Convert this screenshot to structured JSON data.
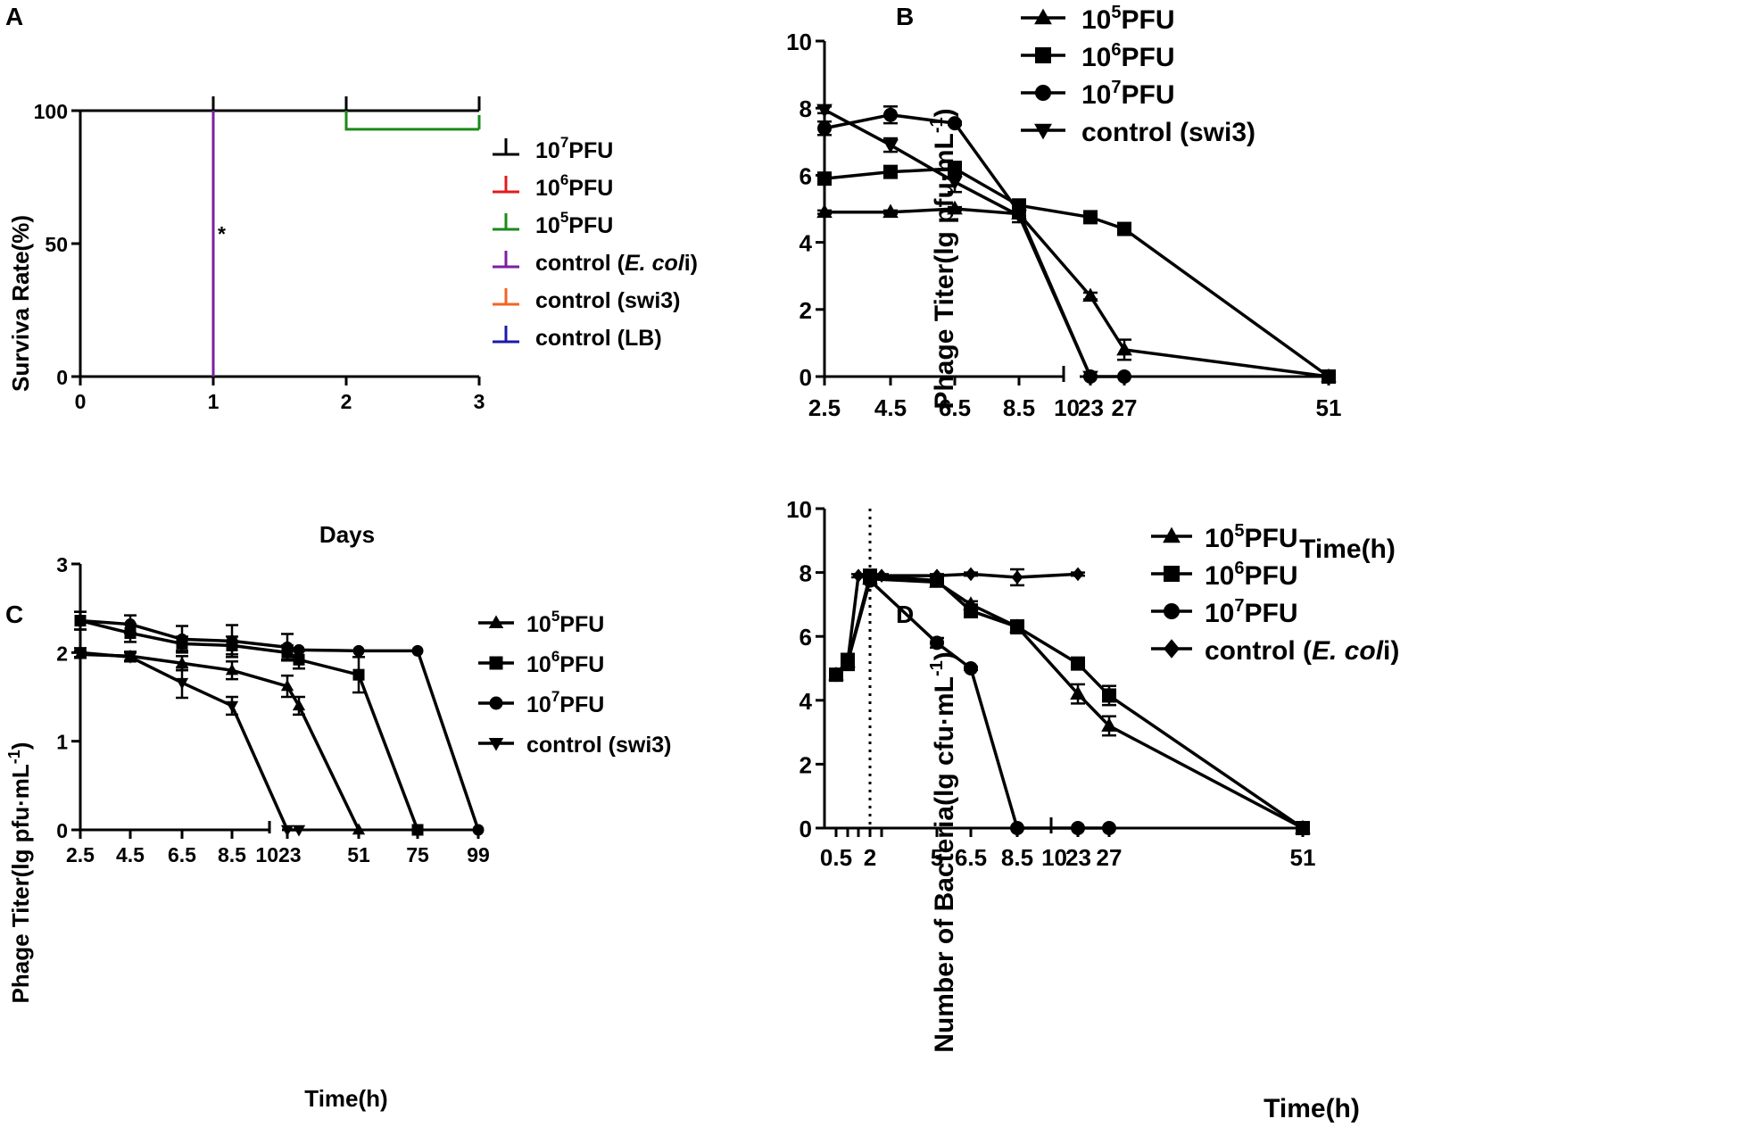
{
  "chart_data": [
    {
      "panel": "A",
      "type": "line",
      "subtype": "survival",
      "xlabel": "Days",
      "ylabel": "Surviva Rate(%)",
      "xlim": [
        0,
        3
      ],
      "ylim": [
        0,
        100
      ],
      "xticks": [
        "0",
        "1",
        "2",
        "3"
      ],
      "yticks": [
        "0",
        "50",
        "100"
      ],
      "annotation": "*",
      "legend_position": "right",
      "series": [
        {
          "name": "10^7PFU",
          "base": "10",
          "sup": "7",
          "rest": "PFU",
          "color": "#000000",
          "points": [
            [
              0,
              100
            ],
            [
              3,
              100
            ]
          ],
          "censor": [
            1,
            2,
            3
          ]
        },
        {
          "name": "10^6PFU",
          "base": "10",
          "sup": "6",
          "rest": "PFU",
          "color": "#e31a1c",
          "points": [],
          "censor": []
        },
        {
          "name": "10^5PFU",
          "base": "10",
          "sup": "5",
          "rest": "PFU",
          "color": "#1a8a1a",
          "points": [
            [
              2,
              100
            ],
            [
              2,
              93
            ],
            [
              3,
              93
            ]
          ],
          "censor": [
            3
          ]
        },
        {
          "name": "control (E. coli)",
          "pre": "control (",
          "italic": "E. col",
          "post": "i)",
          "color": "#7b1fa2",
          "points": [
            [
              1,
              100
            ],
            [
              1,
              0
            ]
          ],
          "censor": []
        },
        {
          "name": "control (swi3)",
          "label": "control (swi3)",
          "color": "#f26522",
          "points": [],
          "censor": []
        },
        {
          "name": "control (LB)",
          "label": "control (LB)",
          "color": "#1a1aa8",
          "points": [],
          "censor": []
        }
      ]
    },
    {
      "panel": "B",
      "type": "line",
      "xlabel": "Time(h)",
      "ylabel": "Phage Titer(lg pfu·mL",
      "ylabel_sup": "-1",
      "ylabel_end": ")",
      "ylim": [
        0,
        10
      ],
      "yticks": [
        "0",
        "2",
        "4",
        "6",
        "8",
        "10"
      ],
      "categories": [
        "2.5",
        "4.5",
        "6.5",
        "8.5",
        "10",
        "23",
        "27",
        "51"
      ],
      "legend_position": "top-right",
      "series": [
        {
          "name": "10^5PFU",
          "base": "10",
          "sup": "5",
          "rest": "PFU",
          "marker": "triangle-up",
          "x": [
            "2.5",
            "4.5",
            "6.5",
            "8.5",
            "23",
            "27",
            "51"
          ],
          "values": [
            4.9,
            4.9,
            5.0,
            4.85,
            2.4,
            0.8,
            0.0
          ],
          "err": [
            0.05,
            0.05,
            0.05,
            0.1,
            0.1,
            0.3,
            0.05
          ]
        },
        {
          "name": "10^6PFU",
          "base": "10",
          "sup": "6",
          "rest": "PFU",
          "marker": "square",
          "x": [
            "2.5",
            "4.5",
            "6.5",
            "8.5",
            "23",
            "27",
            "51"
          ],
          "values": [
            5.9,
            6.1,
            6.2,
            5.1,
            4.75,
            4.4,
            0.0
          ],
          "err": [
            0.1,
            0.1,
            0.2,
            0.1,
            0.1,
            0.1,
            0.05
          ]
        },
        {
          "name": "10^7PFU",
          "base": "10",
          "sup": "7",
          "rest": "PFU",
          "marker": "circle",
          "x": [
            "2.5",
            "4.5",
            "6.5",
            "8.5",
            "23",
            "27"
          ],
          "values": [
            7.4,
            7.8,
            7.55,
            4.9,
            0.0,
            0.0
          ],
          "err": [
            0.2,
            0.25,
            0.05,
            0.1,
            0.0,
            0.0
          ]
        },
        {
          "name": "control (swi3)",
          "label": "control (swi3)",
          "marker": "triangle-down",
          "x": [
            "2.5",
            "4.5",
            "6.5",
            "8.5",
            "23"
          ],
          "values": [
            7.95,
            6.9,
            5.8,
            4.8,
            0.0
          ],
          "err": [
            0.1,
            0.2,
            0.3,
            0.2,
            0.0
          ]
        }
      ]
    },
    {
      "panel": "C",
      "type": "line",
      "xlabel": "Time(h)",
      "ylabel": "Phage Titer(lg pfu·mL",
      "ylabel_sup": "-1",
      "ylabel_end": ")",
      "ylim": [
        0,
        3
      ],
      "yticks": [
        "0",
        "1",
        "2",
        "3"
      ],
      "categories": [
        "2.5",
        "4.5",
        "6.5",
        "8.5",
        "10",
        "23",
        "51",
        "75",
        "99"
      ],
      "legend_position": "right",
      "series": [
        {
          "name": "10^5PFU",
          "base": "10",
          "sup": "5",
          "rest": "PFU",
          "marker": "triangle-up",
          "x": [
            "2.5",
            "4.5",
            "6.5",
            "8.5",
            "23",
            "25",
            "51"
          ],
          "values": [
            1.98,
            1.96,
            1.88,
            1.8,
            1.62,
            1.4,
            0.0
          ],
          "err": [
            0.04,
            0.05,
            0.08,
            0.1,
            0.12,
            0.1,
            0.0
          ]
        },
        {
          "name": "10^6PFU",
          "base": "10",
          "sup": "6",
          "rest": "PFU",
          "marker": "square",
          "x": [
            "2.5",
            "4.5",
            "6.5",
            "8.5",
            "23",
            "25",
            "51",
            "75"
          ],
          "values": [
            2.36,
            2.22,
            2.1,
            2.08,
            2.0,
            1.92,
            1.75,
            0.0
          ],
          "err": [
            0.1,
            0.1,
            0.08,
            0.1,
            0.08,
            0.1,
            0.2,
            0.0
          ]
        },
        {
          "name": "10^7PFU",
          "base": "10",
          "sup": "7",
          "rest": "PFU",
          "marker": "circle",
          "x": [
            "2.5",
            "4.5",
            "6.5",
            "8.5",
            "23",
            "25",
            "51",
            "75",
            "99"
          ],
          "values": [
            2.36,
            2.32,
            2.15,
            2.13,
            2.06,
            2.03,
            2.02,
            2.02,
            0.0
          ],
          "err": [
            0.1,
            0.1,
            0.15,
            0.18,
            0.15,
            0.0,
            0.0,
            0.0,
            0.0
          ]
        },
        {
          "name": "control (swi3)",
          "label": "control (swi3)",
          "marker": "triangle-down",
          "x": [
            "2.5",
            "4.5",
            "6.5",
            "8.5",
            "23",
            "25"
          ],
          "values": [
            2.0,
            1.95,
            1.66,
            1.4,
            0.0,
            0.0
          ],
          "err": [
            0.05,
            0.05,
            0.17,
            0.1,
            0.0,
            0.0
          ]
        }
      ]
    },
    {
      "panel": "D",
      "type": "line",
      "xlabel": "Time(h)",
      "ylabel": "Number of Bacteria(lg cfu·mL",
      "ylabel_sup": "-1",
      "ylabel_end": ")",
      "ylim": [
        0,
        10
      ],
      "yticks": [
        "0",
        "2",
        "4",
        "6",
        "8",
        "10"
      ],
      "xticks": [
        "0.5",
        "2",
        "5",
        "6.5",
        "8.5",
        "10",
        "23",
        "27",
        "51"
      ],
      "reference_line_x": 2,
      "legend_position": "right",
      "series": [
        {
          "name": "10^5PFU",
          "base": "10",
          "sup": "5",
          "rest": "PFU",
          "marker": "triangle-up",
          "x": [
            0.5,
            1,
            2,
            5,
            6.5,
            8.5,
            23,
            27,
            51
          ],
          "values": [
            4.8,
            5.2,
            7.8,
            7.7,
            7.0,
            6.3,
            4.2,
            3.2,
            0.0
          ],
          "err": [
            0.1,
            0.25,
            0.1,
            0.1,
            0.1,
            0.2,
            0.3,
            0.3,
            0.05
          ]
        },
        {
          "name": "10^6PFU",
          "base": "10",
          "sup": "6",
          "rest": "PFU",
          "marker": "square",
          "x": [
            0.5,
            1,
            2,
            5,
            6.5,
            8.5,
            23,
            27,
            51
          ],
          "values": [
            4.8,
            5.2,
            7.9,
            7.75,
            6.8,
            6.3,
            5.15,
            4.15,
            0.0
          ],
          "err": [
            0.1,
            0.25,
            0.1,
            0.1,
            0.2,
            0.2,
            0.1,
            0.3,
            0.05
          ]
        },
        {
          "name": "10^7PFU",
          "base": "10",
          "sup": "7",
          "rest": "PFU",
          "marker": "circle",
          "x": [
            0.5,
            1,
            2,
            5,
            6.5,
            8.5,
            23,
            27
          ],
          "values": [
            4.8,
            5.2,
            7.75,
            5.8,
            5.0,
            0.0,
            0.0,
            0.0
          ],
          "err": [
            0.1,
            0.25,
            0.1,
            0.15,
            0.05,
            0.0,
            0.0,
            0.0
          ]
        },
        {
          "name": "control (E. coli)",
          "pre": "control (",
          "italic": "E. col",
          "post": "i)",
          "marker": "diamond",
          "x": [
            0.5,
            1,
            1.5,
            2,
            2.5,
            5,
            6.5,
            8.5,
            23
          ],
          "values": [
            4.8,
            5.2,
            7.9,
            7.9,
            7.9,
            7.9,
            7.95,
            7.85,
            7.95
          ],
          "err": [
            0.1,
            0.25,
            0.05,
            0.05,
            0.05,
            0.05,
            0.05,
            0.25,
            0.05
          ]
        }
      ]
    }
  ]
}
